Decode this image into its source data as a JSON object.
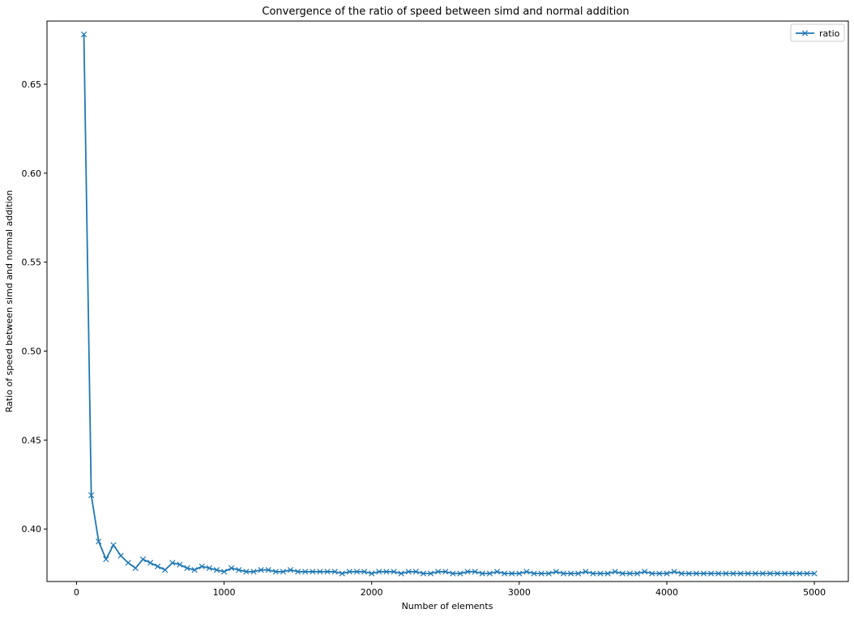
{
  "chart_data": {
    "type": "line",
    "title": "Convergence of the ratio of speed between simd and normal addition",
    "xlabel": "Number of elements",
    "ylabel": "Ratio of speed between simd and normal addition",
    "xlim": [
      -200,
      5230
    ],
    "ylim": [
      0.3705,
      0.6855
    ],
    "xticks": [
      0,
      1000,
      2000,
      3000,
      4000,
      5000
    ],
    "yticks": [
      0.4,
      0.45,
      0.5,
      0.55,
      0.6,
      0.65
    ],
    "grid": false,
    "legend_position": "top-right",
    "series": [
      {
        "name": "ratio",
        "color": "#1f77b4",
        "marker": "x",
        "x": [
          50,
          100,
          150,
          200,
          250,
          300,
          350,
          400,
          450,
          500,
          550,
          600,
          650,
          700,
          750,
          800,
          850,
          900,
          950,
          1000,
          1050,
          1100,
          1150,
          1200,
          1250,
          1300,
          1350,
          1400,
          1450,
          1500,
          1550,
          1600,
          1650,
          1700,
          1750,
          1800,
          1850,
          1900,
          1950,
          2000,
          2050,
          2100,
          2150,
          2200,
          2250,
          2300,
          2350,
          2400,
          2450,
          2500,
          2550,
          2600,
          2650,
          2700,
          2750,
          2800,
          2850,
          2900,
          2950,
          3000,
          3050,
          3100,
          3150,
          3200,
          3250,
          3300,
          3350,
          3400,
          3450,
          3500,
          3550,
          3600,
          3650,
          3700,
          3750,
          3800,
          3850,
          3900,
          3950,
          4000,
          4050,
          4100,
          4150,
          4200,
          4250,
          4300,
          4350,
          4400,
          4450,
          4500,
          4550,
          4600,
          4650,
          4700,
          4750,
          4800,
          4850,
          4900,
          4950,
          5000
        ],
        "y": [
          0.678,
          0.419,
          0.393,
          0.383,
          0.391,
          0.385,
          0.381,
          0.378,
          0.383,
          0.381,
          0.379,
          0.377,
          0.381,
          0.38,
          0.378,
          0.377,
          0.379,
          0.378,
          0.377,
          0.376,
          0.378,
          0.377,
          0.376,
          0.376,
          0.377,
          0.377,
          0.376,
          0.376,
          0.377,
          0.376,
          0.376,
          0.376,
          0.376,
          0.376,
          0.376,
          0.375,
          0.376,
          0.376,
          0.376,
          0.375,
          0.376,
          0.376,
          0.376,
          0.375,
          0.376,
          0.376,
          0.375,
          0.375,
          0.376,
          0.376,
          0.375,
          0.375,
          0.376,
          0.376,
          0.375,
          0.375,
          0.376,
          0.375,
          0.375,
          0.375,
          0.376,
          0.375,
          0.375,
          0.375,
          0.376,
          0.375,
          0.375,
          0.375,
          0.376,
          0.375,
          0.375,
          0.375,
          0.376,
          0.375,
          0.375,
          0.375,
          0.376,
          0.375,
          0.375,
          0.375,
          0.376,
          0.375,
          0.375,
          0.375,
          0.375,
          0.375,
          0.375,
          0.375,
          0.375,
          0.375,
          0.375,
          0.375,
          0.375,
          0.375,
          0.375,
          0.375,
          0.375,
          0.375,
          0.375,
          0.375
        ]
      }
    ]
  }
}
